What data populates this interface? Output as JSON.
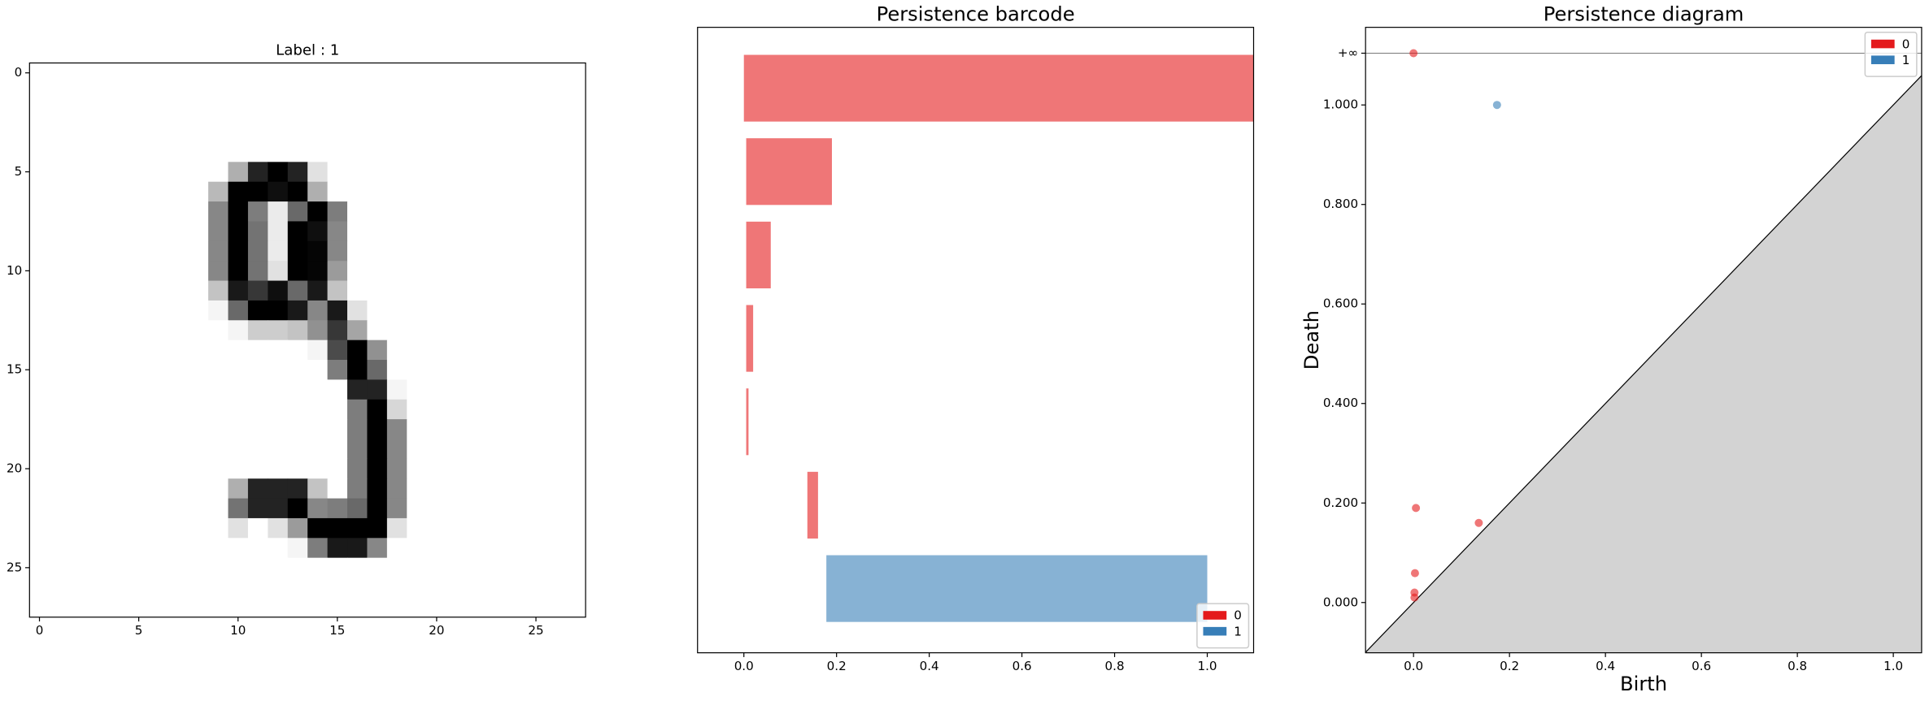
{
  "chart_data": [
    {
      "type": "image",
      "title": "Label : 1",
      "xlim": [
        -0.5,
        27.5
      ],
      "ylim": [
        27.5,
        -0.5
      ],
      "xticks": [
        0,
        5,
        10,
        15,
        20,
        25
      ],
      "yticks": [
        0,
        5,
        10,
        15,
        20,
        25
      ],
      "pixels": [
        [
          0,
          0,
          0,
          0,
          0,
          0,
          0,
          0,
          0,
          0,
          0,
          0,
          0,
          0,
          0,
          0,
          0,
          0,
          0,
          0,
          0,
          0,
          0,
          0,
          0,
          0,
          0,
          0
        ],
        [
          0,
          0,
          0,
          0,
          0,
          0,
          0,
          0,
          0,
          0,
          0,
          0,
          0,
          0,
          0,
          0,
          0,
          0,
          0,
          0,
          0,
          0,
          0,
          0,
          0,
          0,
          0,
          0
        ],
        [
          0,
          0,
          0,
          0,
          0,
          0,
          0,
          0,
          0,
          0,
          0,
          0,
          0,
          0,
          0,
          0,
          0,
          0,
          0,
          0,
          0,
          0,
          0,
          0,
          0,
          0,
          0,
          0
        ],
        [
          0,
          0,
          0,
          0,
          0,
          0,
          0,
          0,
          0,
          0,
          0,
          0,
          0,
          0,
          0,
          0,
          0,
          0,
          0,
          0,
          0,
          0,
          0,
          0,
          0,
          0,
          0,
          0
        ],
        [
          0,
          0,
          0,
          0,
          0,
          0,
          0,
          0,
          0,
          0,
          0,
          0,
          0,
          0,
          0,
          0,
          0,
          0,
          0,
          0,
          0,
          0,
          0,
          0,
          0,
          0,
          0,
          0
        ],
        [
          0,
          0,
          0,
          0,
          0,
          0,
          0,
          0,
          0,
          0,
          80,
          220,
          255,
          220,
          30,
          0,
          0,
          0,
          0,
          0,
          0,
          0,
          0,
          0,
          0,
          0,
          0,
          0
        ],
        [
          0,
          0,
          0,
          0,
          0,
          0,
          0,
          0,
          0,
          70,
          255,
          255,
          240,
          255,
          80,
          0,
          0,
          0,
          0,
          0,
          0,
          0,
          0,
          0,
          0,
          0,
          0,
          0
        ],
        [
          0,
          0,
          0,
          0,
          0,
          0,
          0,
          0,
          0,
          120,
          255,
          130,
          20,
          150,
          255,
          130,
          0,
          0,
          0,
          0,
          0,
          0,
          0,
          0,
          0,
          0,
          0,
          0
        ],
        [
          0,
          0,
          0,
          0,
          0,
          0,
          0,
          0,
          0,
          120,
          255,
          140,
          20,
          255,
          240,
          120,
          0,
          0,
          0,
          0,
          0,
          0,
          0,
          0,
          0,
          0,
          0,
          0
        ],
        [
          0,
          0,
          0,
          0,
          0,
          0,
          0,
          0,
          0,
          120,
          255,
          140,
          20,
          255,
          250,
          120,
          0,
          0,
          0,
          0,
          0,
          0,
          0,
          0,
          0,
          0,
          0,
          0
        ],
        [
          0,
          0,
          0,
          0,
          0,
          0,
          0,
          0,
          0,
          120,
          255,
          140,
          30,
          255,
          250,
          100,
          0,
          0,
          0,
          0,
          0,
          0,
          0,
          0,
          0,
          0,
          0,
          0
        ],
        [
          0,
          0,
          0,
          0,
          0,
          0,
          0,
          0,
          0,
          60,
          230,
          200,
          240,
          150,
          230,
          60,
          0,
          0,
          0,
          0,
          0,
          0,
          0,
          0,
          0,
          0,
          0,
          0
        ],
        [
          0,
          0,
          0,
          0,
          0,
          0,
          0,
          0,
          0,
          10,
          150,
          255,
          255,
          230,
          120,
          230,
          30,
          0,
          0,
          0,
          0,
          0,
          0,
          0,
          0,
          0,
          0,
          0
        ],
        [
          0,
          0,
          0,
          0,
          0,
          0,
          0,
          0,
          0,
          0,
          10,
          50,
          50,
          60,
          110,
          200,
          90,
          0,
          0,
          0,
          0,
          0,
          0,
          0,
          0,
          0,
          0,
          0
        ],
        [
          0,
          0,
          0,
          0,
          0,
          0,
          0,
          0,
          0,
          0,
          0,
          0,
          0,
          0,
          10,
          180,
          255,
          110,
          0,
          0,
          0,
          0,
          0,
          0,
          0,
          0,
          0,
          0
        ],
        [
          0,
          0,
          0,
          0,
          0,
          0,
          0,
          0,
          0,
          0,
          0,
          0,
          0,
          0,
          0,
          130,
          255,
          150,
          0,
          0,
          0,
          0,
          0,
          0,
          0,
          0,
          0,
          0
        ],
        [
          0,
          0,
          0,
          0,
          0,
          0,
          0,
          0,
          0,
          0,
          0,
          0,
          0,
          0,
          0,
          0,
          220,
          220,
          10,
          0,
          0,
          0,
          0,
          0,
          0,
          0,
          0,
          0
        ],
        [
          0,
          0,
          0,
          0,
          0,
          0,
          0,
          0,
          0,
          0,
          0,
          0,
          0,
          0,
          0,
          0,
          130,
          255,
          40,
          0,
          0,
          0,
          0,
          0,
          0,
          0,
          0,
          0
        ],
        [
          0,
          0,
          0,
          0,
          0,
          0,
          0,
          0,
          0,
          0,
          0,
          0,
          0,
          0,
          0,
          0,
          130,
          255,
          120,
          0,
          0,
          0,
          0,
          0,
          0,
          0,
          0,
          0
        ],
        [
          0,
          0,
          0,
          0,
          0,
          0,
          0,
          0,
          0,
          0,
          0,
          0,
          0,
          0,
          0,
          0,
          130,
          255,
          120,
          0,
          0,
          0,
          0,
          0,
          0,
          0,
          0,
          0
        ],
        [
          0,
          0,
          0,
          0,
          0,
          0,
          0,
          0,
          0,
          0,
          0,
          0,
          0,
          0,
          0,
          0,
          130,
          255,
          120,
          0,
          0,
          0,
          0,
          0,
          0,
          0,
          0,
          0
        ],
        [
          0,
          0,
          0,
          0,
          0,
          0,
          0,
          0,
          0,
          0,
          80,
          220,
          220,
          220,
          60,
          0,
          130,
          255,
          120,
          0,
          0,
          0,
          0,
          0,
          0,
          0,
          0,
          0
        ],
        [
          0,
          0,
          0,
          0,
          0,
          0,
          0,
          0,
          0,
          0,
          140,
          220,
          220,
          255,
          120,
          130,
          150,
          255,
          120,
          0,
          0,
          0,
          0,
          0,
          0,
          0,
          0,
          0
        ],
        [
          0,
          0,
          0,
          0,
          0,
          0,
          0,
          0,
          0,
          0,
          30,
          0,
          30,
          100,
          255,
          255,
          255,
          255,
          30,
          0,
          0,
          0,
          0,
          0,
          0,
          0,
          0,
          0
        ],
        [
          0,
          0,
          0,
          0,
          0,
          0,
          0,
          0,
          0,
          0,
          0,
          0,
          0,
          10,
          130,
          230,
          230,
          120,
          0,
          0,
          0,
          0,
          0,
          0,
          0,
          0,
          0,
          0
        ],
        [
          0,
          0,
          0,
          0,
          0,
          0,
          0,
          0,
          0,
          0,
          0,
          0,
          0,
          0,
          0,
          0,
          0,
          0,
          0,
          0,
          0,
          0,
          0,
          0,
          0,
          0,
          0,
          0
        ],
        [
          0,
          0,
          0,
          0,
          0,
          0,
          0,
          0,
          0,
          0,
          0,
          0,
          0,
          0,
          0,
          0,
          0,
          0,
          0,
          0,
          0,
          0,
          0,
          0,
          0,
          0,
          0,
          0
        ],
        [
          0,
          0,
          0,
          0,
          0,
          0,
          0,
          0,
          0,
          0,
          0,
          0,
          0,
          0,
          0,
          0,
          0,
          0,
          0,
          0,
          0,
          0,
          0,
          0,
          0,
          0,
          0,
          0
        ]
      ]
    },
    {
      "type": "barcode",
      "title": "Persistence barcode",
      "xlim": [
        -0.1,
        1.1
      ],
      "xticks": [
        {
          "value": 0,
          "label": "0.0"
        },
        {
          "value": 0.2,
          "label": "0.2"
        },
        {
          "value": 0.4,
          "label": "0.4"
        },
        {
          "value": 0.6,
          "label": "0.6"
        },
        {
          "value": 0.8,
          "label": "0.8"
        },
        {
          "value": 1,
          "label": "1.0"
        }
      ],
      "legend": "lower right",
      "series": [
        {
          "name": "0",
          "color": "#e41a1c",
          "births": [
            0,
            0.005,
            0.005,
            0.005,
            0.005,
            0.137
          ],
          "deaths": [
            null,
            0.19,
            0.058,
            0.02,
            0.01,
            0.16
          ]
        },
        {
          "name": "1",
          "color": "#377eb8",
          "births": [
            0.178
          ],
          "deaths": [
            1.0
          ]
        }
      ]
    },
    {
      "type": "scatter",
      "title": "Persistence diagram",
      "xlabel": "Birth",
      "ylabel": "Death",
      "xlim": [
        -0.1,
        1.059
      ],
      "ylim": [
        -0.101,
        1.156
      ],
      "xticks": [
        {
          "value": 0,
          "label": "0.0"
        },
        {
          "value": 0.2,
          "label": "0.2"
        },
        {
          "value": 0.4,
          "label": "0.4"
        },
        {
          "value": 0.6,
          "label": "0.6"
        },
        {
          "value": 0.8,
          "label": "0.8"
        },
        {
          "value": 1,
          "label": "1.0"
        }
      ],
      "yticks": [
        {
          "value": 0,
          "label": "0.000"
        },
        {
          "value": 0.2,
          "label": "0.200"
        },
        {
          "value": 0.4,
          "label": "0.400"
        },
        {
          "value": 0.6,
          "label": "0.600"
        },
        {
          "value": 0.8,
          "label": "0.800"
        },
        {
          "value": 1,
          "label": "1.000"
        },
        {
          "value": 1.104,
          "label": "+∞"
        }
      ],
      "legend": "upper right",
      "series": [
        {
          "name": "0",
          "color": "#e41a1c",
          "x": [
            0,
            0.005,
            0.136,
            0.003,
            0.002,
            0.002
          ],
          "values": [
            null,
            0.19,
            0.16,
            0.059,
            0.02,
            0.01
          ]
        },
        {
          "name": "1",
          "color": "#377eb8",
          "x": [
            0.174
          ],
          "values": [
            1.0
          ]
        }
      ]
    }
  ]
}
